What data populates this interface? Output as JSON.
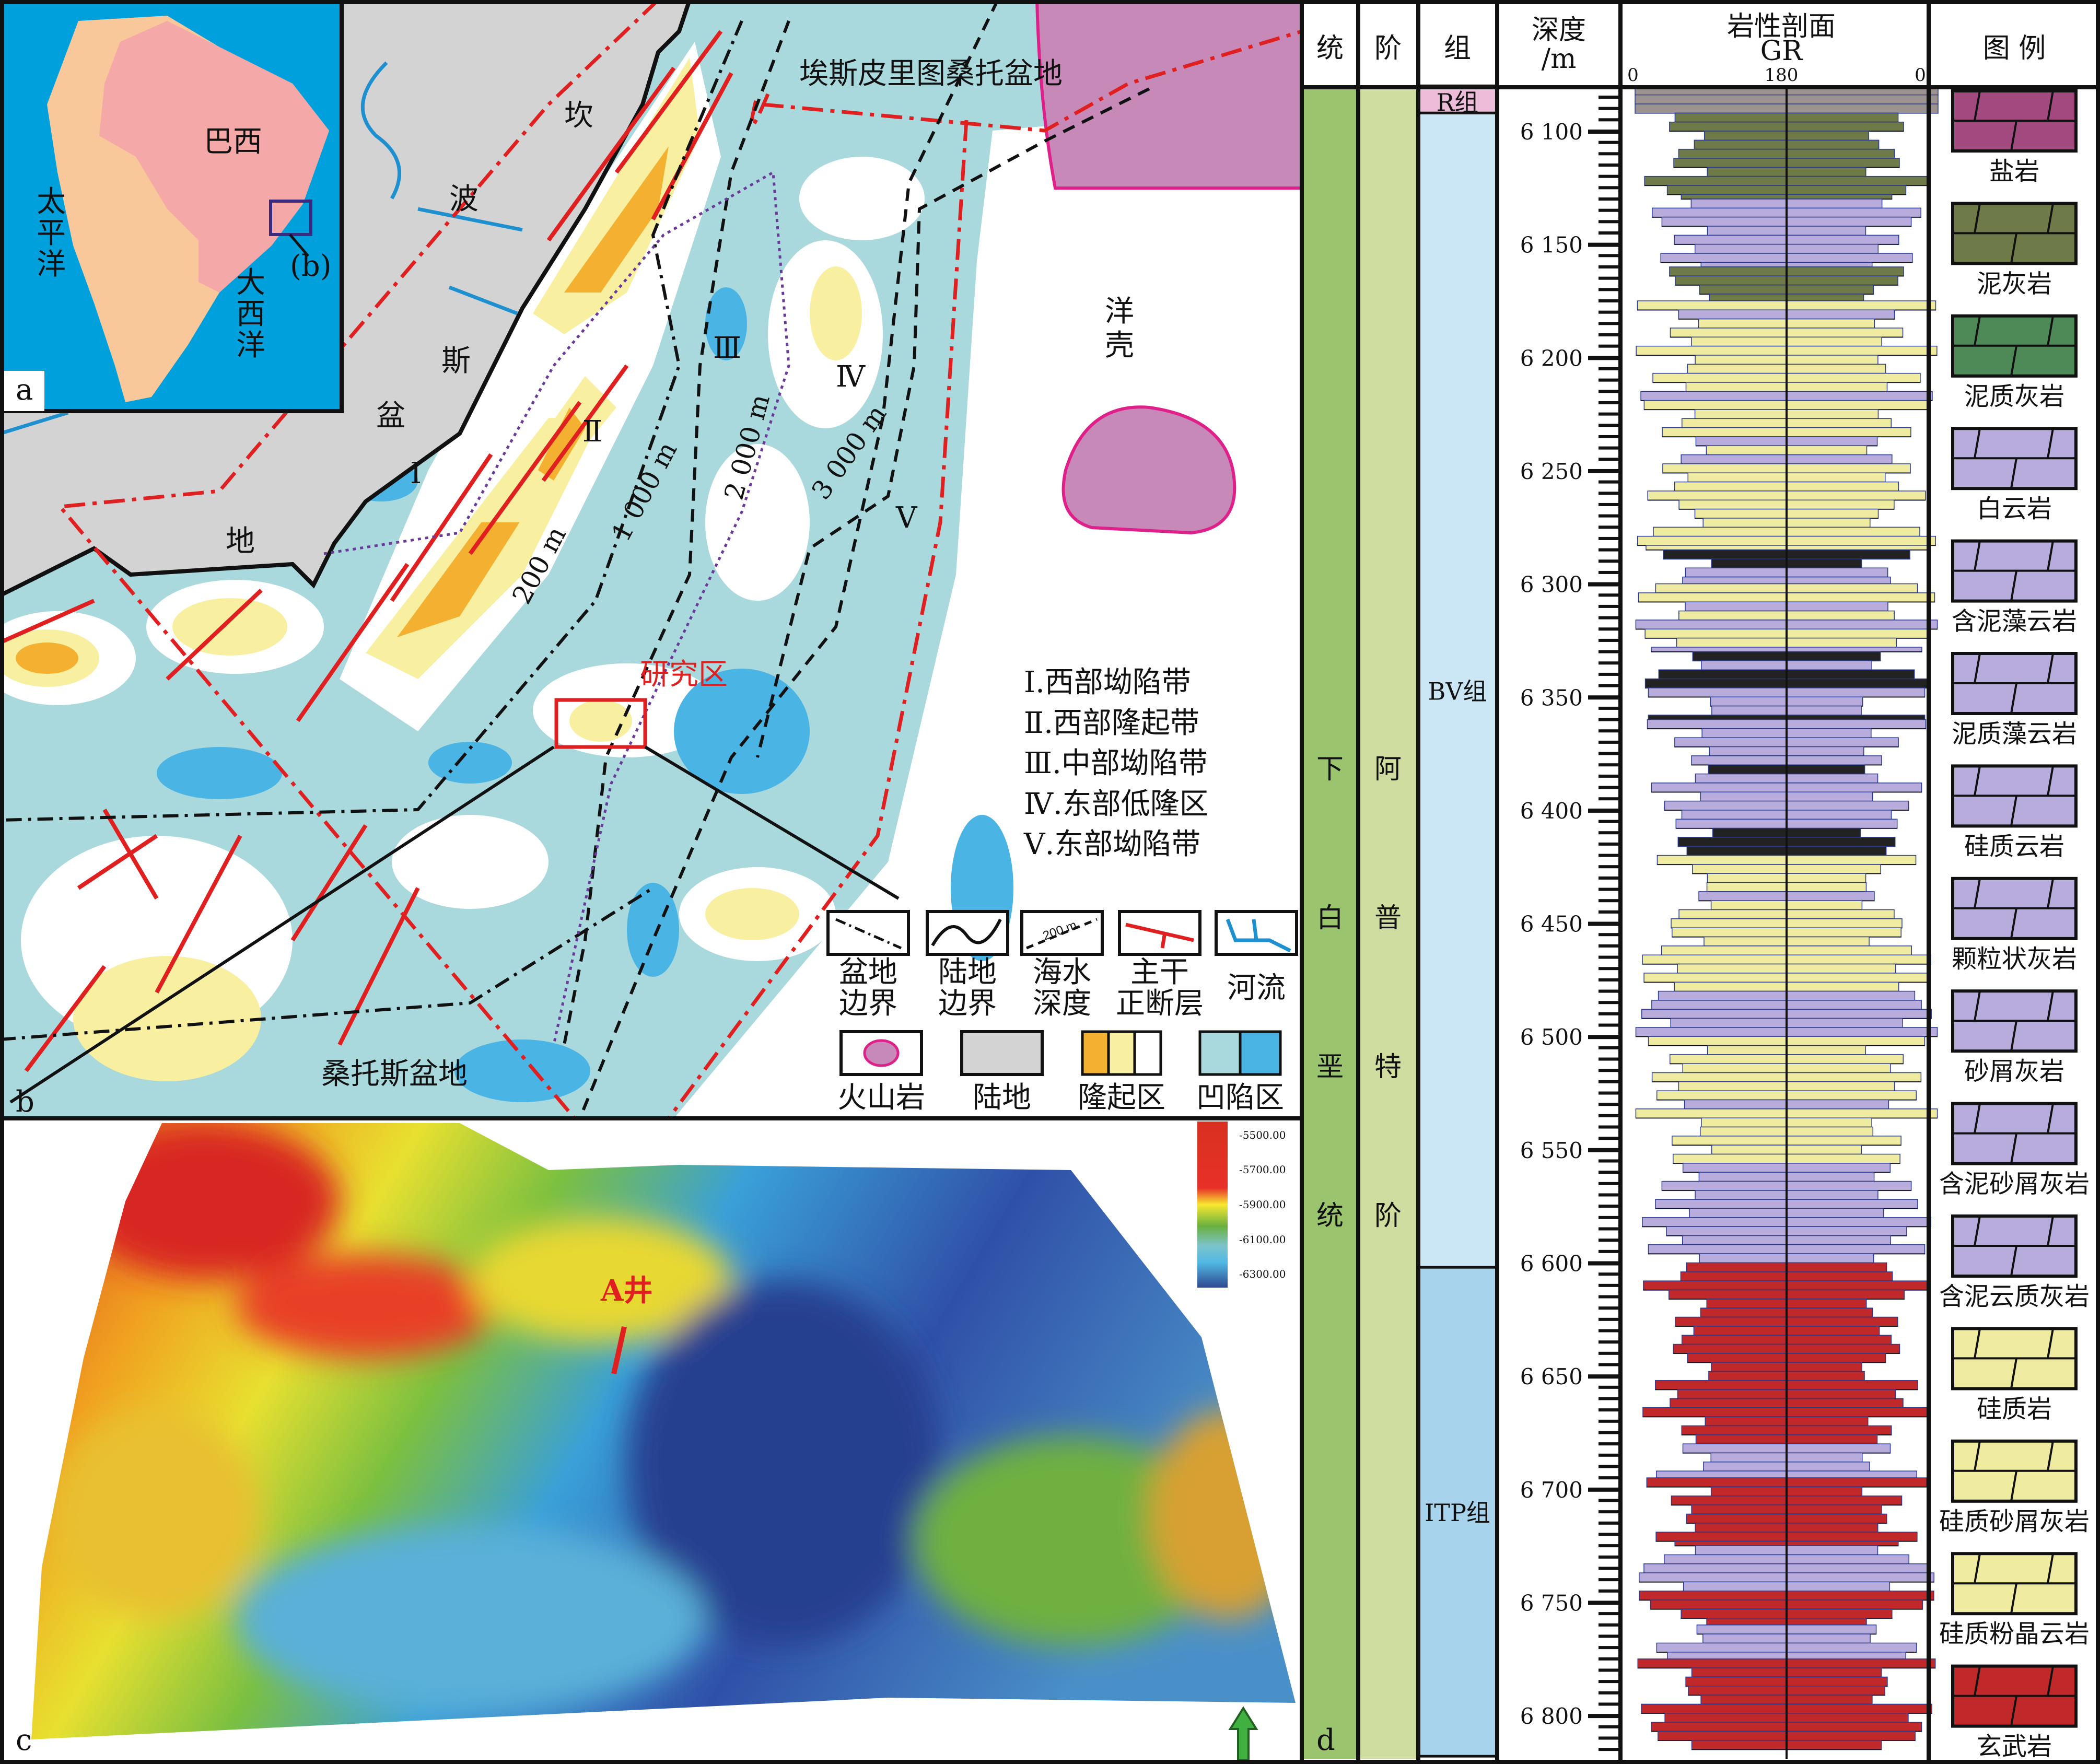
{
  "panel_a": {
    "tag": "a",
    "brazil": "巴西",
    "pacific": [
      "太",
      "平",
      "洋"
    ],
    "atlantic": [
      "大",
      "西",
      "洋"
    ],
    "inset_ref": "(b)"
  },
  "panel_b": {
    "tag": "b",
    "espirito_santo": "埃斯皮里图桑托盆地",
    "santos_vertical": [
      "坎",
      "波",
      "斯",
      "盆",
      "地"
    ],
    "santos_basin": "桑托斯盆地",
    "oceanic_crust": [
      "洋",
      "壳"
    ],
    "zones": [
      "Ⅰ",
      "Ⅱ",
      "Ⅲ",
      "Ⅳ",
      "Ⅴ"
    ],
    "isobaths": [
      "200 m",
      "1 000 m",
      "2 000 m",
      "3 000 m"
    ],
    "study_area": "研究区",
    "zone_legend": [
      "Ⅰ.西部坳陷带",
      "Ⅱ.西部隆起带",
      "Ⅲ.中部坳陷带",
      "Ⅳ.东部低隆区",
      "Ⅴ.东部坳陷带"
    ],
    "legend_row1": [
      [
        "盆地",
        "边界"
      ],
      [
        "陆地",
        "边界"
      ],
      [
        "海水",
        "深度"
      ],
      [
        "主干",
        "正断层"
      ],
      [
        "河流",
        ""
      ]
    ],
    "legend_row2": [
      "火山岩",
      "陆地",
      "隆起区",
      "凹陷区"
    ],
    "legend_sample_depth": "200 m"
  },
  "panel_c": {
    "tag": "c",
    "well": "A井",
    "colorbar": [
      "-5500.00",
      "-5700.00",
      "-5900.00",
      "-6100.00",
      "-6300.00"
    ]
  },
  "panel_d": {
    "tag": "d",
    "headers": {
      "series": "统",
      "stage": "阶",
      "formation": "组",
      "depth": "深度",
      "depth_unit": "/m",
      "section": "岩性剖面",
      "gr": "GR",
      "gr_min": "0",
      "gr_mid": "180",
      "gr_max": "0",
      "legend": "图 例"
    },
    "series_text": [
      "下",
      "白",
      "垩",
      "统"
    ],
    "stage_text": [
      "阿",
      "普",
      "特",
      "阶"
    ],
    "formations": [
      {
        "name": "R组",
        "top": 6080,
        "base": 6092,
        "color": "#ecbcd8"
      },
      {
        "name": "BV组",
        "top": 6092,
        "base": 6602,
        "color": "#cbe7f5"
      },
      {
        "name": "ITP组",
        "top": 6602,
        "base": 6818,
        "color": "#a7d3ec"
      }
    ],
    "depth_labels": [
      "6 100",
      "6 150",
      "6 200",
      "6 250",
      "6 300",
      "6 350",
      "6 400",
      "6 450",
      "6 500",
      "6 550",
      "6 600",
      "6 650",
      "6 700",
      "6 750",
      "6 800"
    ],
    "depth_values": [
      6100,
      6150,
      6200,
      6250,
      6300,
      6350,
      6400,
      6450,
      6500,
      6550,
      6600,
      6650,
      6700,
      6750,
      6800
    ],
    "intervals": [
      [
        6080,
        6092,
        "gray"
      ],
      [
        6092,
        6130,
        "marl"
      ],
      [
        6130,
        6160,
        "dolo"
      ],
      [
        6160,
        6175,
        "marl"
      ],
      [
        6175,
        6285,
        "si"
      ],
      [
        6285,
        6300,
        "dark"
      ],
      [
        6300,
        6330,
        "si"
      ],
      [
        6330,
        6360,
        "dark"
      ],
      [
        6360,
        6380,
        "dolo"
      ],
      [
        6380,
        6420,
        "dark"
      ],
      [
        6420,
        6480,
        "si"
      ],
      [
        6480,
        6500,
        "dolo"
      ],
      [
        6500,
        6560,
        "si"
      ],
      [
        6560,
        6600,
        "dolo"
      ],
      [
        6600,
        6680,
        "basalt"
      ],
      [
        6680,
        6695,
        "dolo"
      ],
      [
        6695,
        6725,
        "basalt"
      ],
      [
        6725,
        6745,
        "dolo"
      ],
      [
        6745,
        6760,
        "basalt"
      ],
      [
        6760,
        6775,
        "dolo"
      ],
      [
        6775,
        6815,
        "basalt"
      ]
    ],
    "legend_items": [
      {
        "name": "盐岩",
        "color": "#a24a80"
      },
      {
        "name": "泥灰岩",
        "color": "#6e7a48"
      },
      {
        "name": "泥质灰岩",
        "color": "#4d8a58"
      },
      {
        "name": "白云岩",
        "color": "#b7acdb"
      },
      {
        "name": "含泥藻云岩",
        "color": "#b7acdb"
      },
      {
        "name": "泥质藻云岩",
        "color": "#b7acdb"
      },
      {
        "name": "硅质云岩",
        "color": "#b7acdb"
      },
      {
        "name": "颗粒状灰岩",
        "color": "#b7acdb"
      },
      {
        "name": "砂屑灰岩",
        "color": "#b7acdb"
      },
      {
        "name": "含泥砂屑灰岩",
        "color": "#b7acdb"
      },
      {
        "name": "含泥云质灰岩",
        "color": "#b7acdb"
      },
      {
        "name": "硅质岩",
        "color": "#efeba0"
      },
      {
        "name": "硅质砂屑灰岩",
        "color": "#efeba0"
      },
      {
        "name": "硅质粉晶云岩",
        "color": "#efeba0"
      },
      {
        "name": "玄武岩",
        "color": "#c0282a"
      }
    ]
  }
}
